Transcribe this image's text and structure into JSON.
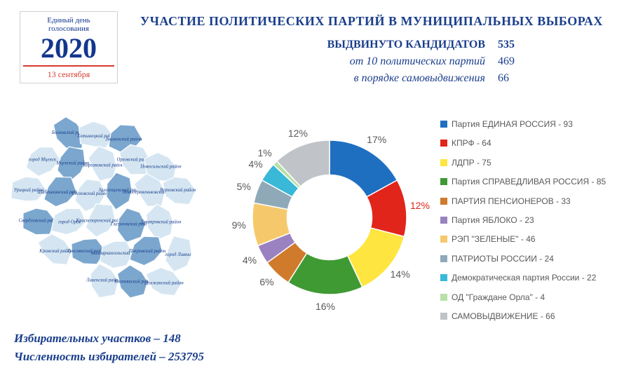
{
  "logo": {
    "line1": "Единый день",
    "line2": "голосования",
    "year": "2020",
    "date": "13 сентября"
  },
  "title": "УЧАСТИЕ ПОЛИТИЧЕСКИХ ПАРТИЙ В МУНИЦИПАЛЬНЫХ ВЫБОРАХ",
  "stats": {
    "total_label": "ВЫДВИНУТО КАНДИДАТОВ",
    "total_value": "535",
    "parties_label": "от 10 политических партий",
    "parties_value": "469",
    "self_label": "в порядке самовыдвижения",
    "self_value": "66"
  },
  "bottom": {
    "stations": "Избирательных участков – 148",
    "voters": "Численность избирателей – 253795"
  },
  "chart": {
    "type": "donut",
    "background": "#ffffff",
    "inner_radius_ratio": 0.55,
    "label_fontsize": 14,
    "label_color": "#595959",
    "slices": [
      {
        "label": "Партия ЕДИНАЯ РОССИЯ - 93",
        "pct": 17,
        "color": "#1f6fc1"
      },
      {
        "label": "КПРФ - 64",
        "pct": 12,
        "color": "#e1251b"
      },
      {
        "label": "ЛДПР - 75",
        "pct": 14,
        "color": "#ffe540"
      },
      {
        "label": "Партия СПРАВЕДЛИВАЯ РОССИЯ - 85",
        "pct": 16,
        "color": "#3f9a33"
      },
      {
        "label": "ПАРТИЯ ПЕНСИОНЕРОВ - 33",
        "pct": 6,
        "color": "#d07a2b"
      },
      {
        "label": "Партия ЯБЛОКО - 23",
        "pct": 4,
        "color": "#9a82c0"
      },
      {
        "label": "РЭП \"ЗЕЛЕНЫЕ\" - 46",
        "pct": 9,
        "color": "#f5c96b"
      },
      {
        "label": "ПАТРИОТЫ РОССИИ - 24",
        "pct": 5,
        "color": "#8fa9b8"
      },
      {
        "label": "Демократическая партия России - 22",
        "pct": 4,
        "color": "#3ab8d8"
      },
      {
        "label": "ОД \"Граждане Орла\" - 4",
        "pct": 1,
        "color": "#b8e0a8"
      },
      {
        "label": "САМОВЫДВИЖЕНИЕ - 66",
        "pct": 12,
        "color": "#c0c4c8"
      }
    ]
  },
  "map": {
    "fill_light": "#d5e6f2",
    "fill_dark": "#7ba7cf",
    "stroke": "#ffffff",
    "label_color": "#1a3e8c",
    "regions": [
      "Болховский район",
      "Хотынецкий район",
      "Знаменский район",
      "город Мценск",
      "Мценский район",
      "Корсаковский район",
      "Орловский район",
      "Новосильский район",
      "Урицкий район",
      "Шаблыкинский район",
      "Сосковский район",
      "Залегощенский район",
      "Новодеревеньковский район",
      "Верховский район",
      "Свердловский район",
      "город Орёл",
      "Краснозоренский район",
      "Глазуновский район",
      "Дмитровский район",
      "Кромский район",
      "Троснянский район",
      "Малоархангельский район",
      "Покровский район",
      "город Ливны",
      "Ливенский район",
      "Колпнянский район",
      "Должанский район"
    ]
  }
}
